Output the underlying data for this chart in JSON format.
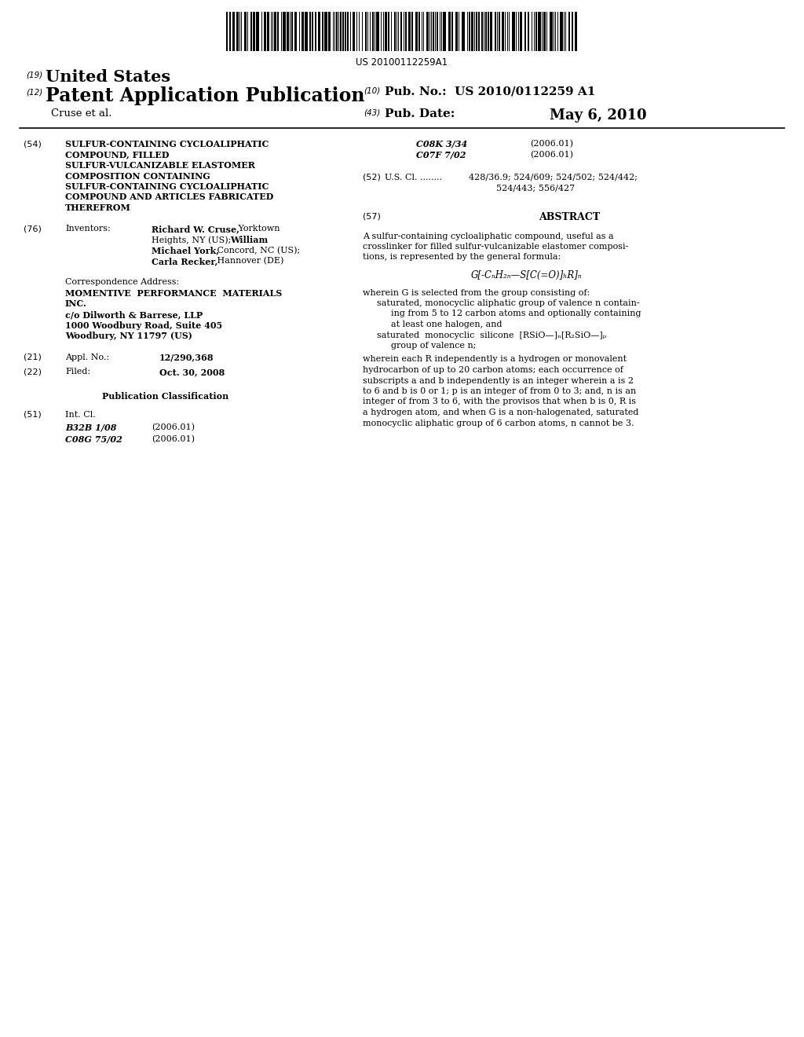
{
  "background_color": "#ffffff",
  "barcode_text": "US 20100112259A1",
  "title_text_lines": [
    "SULFUR-CONTAINING CYCLOALIPHATIC",
    "COMPOUND, FILLED",
    "SULFUR-VULCANIZABLE ELASTOMER",
    "COMPOSITION CONTAINING",
    "SULFUR-CONTAINING CYCLOALIPHATIC",
    "COMPOUND AND ARTICLES FABRICATED",
    "THEREFROM"
  ],
  "ipc_c08k": "C08K 3/34",
  "ipc_c08k_date": "(2006.01)",
  "ipc_c07f": "C07F 7/02",
  "ipc_c07f_date": "(2006.01)",
  "abstract_text_lines": [
    "A sulfur-containing cycloaliphatic compound, useful as a",
    "crosslinker for filled sulfur-vulcanizable elastomer composi-",
    "tions, is represented by the general formula:"
  ],
  "formula": "G[-CₙH₂ₙ—S[C(=O)]ₕR]ₙ",
  "abstract_wherein": "wherein G is selected from the group consisting of:",
  "abstract_bullet1_line1": "saturated, monocyclic aliphatic group of valence n contain-",
  "abstract_bullet1_line2": "ing from 5 to 12 carbon atoms and optionally containing",
  "abstract_bullet1_line3": "at least one halogen, and",
  "abstract_bullet2_line1": "saturated  monocyclic  silicone  [RSiO—]ₙ[R₂SiO—]ₚ",
  "abstract_bullet2_line2": "group of valence n;",
  "abstract_final_lines": [
    "wherein each R independently is a hydrogen or monovalent",
    "hydrocarbon of up to 20 carbon atoms; each occurrence of",
    "subscripts a and b independently is an integer wherein a is 2",
    "to 6 and b is 0 or 1; p is an integer of from 0 to 3; and, n is an",
    "integer of from 3 to 6, with the provisos that when b is 0, R is",
    "a hydrogen atom, and when G is a non-halogenated, saturated",
    "monocyclic aliphatic group of 6 carbon atoms, n cannot be 3."
  ],
  "us_cl_line1": "428/36.9; 524/609; 524/502; 524/442;",
  "us_cl_line2": "524/443; 556/427",
  "int_cl_b32b": "B32B 1/08",
  "int_cl_b32b_date": "(2006.01)",
  "int_cl_c08g": "C08G 75/02",
  "int_cl_c08g_date": "(2006.01)"
}
